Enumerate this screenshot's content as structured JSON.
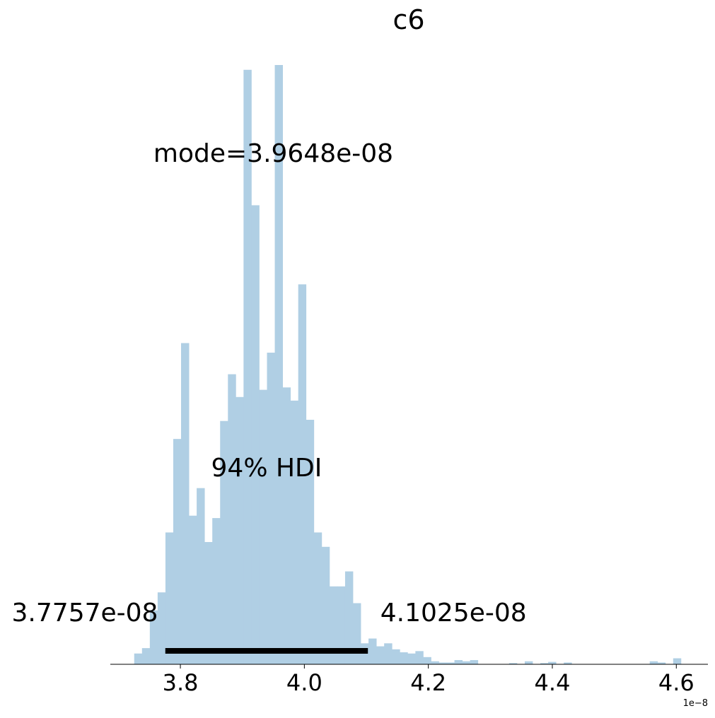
{
  "chart_data": {
    "type": "bar",
    "title": "c6",
    "xlabel": "",
    "ylabel": "",
    "x_offset_label": "1e−8",
    "xlim": [
      3.687,
      4.651
    ],
    "ylim": [
      0,
      1.0
    ],
    "bin_width": 0.0126,
    "colors": {
      "bars": "#b0cfe4",
      "hdi_bar": "#000000",
      "axis": "#000000"
    },
    "bins": {
      "start": [
        3.7255,
        3.7381,
        3.7507,
        3.7633,
        3.7759,
        3.7885,
        3.8011,
        3.8137,
        3.8263,
        3.8389,
        3.8515,
        3.8641,
        3.8767,
        3.8893,
        3.9019,
        3.9145,
        3.9271,
        3.9397,
        3.9523,
        3.9649,
        3.9775,
        3.9901,
        4.0027,
        4.0153,
        4.0279,
        4.0405,
        4.0531,
        4.0657,
        4.0783,
        4.0909,
        4.1035,
        4.1161,
        4.1287,
        4.1413,
        4.1539,
        4.1665,
        4.1791,
        4.1917,
        4.2043,
        4.2169,
        4.2295,
        4.2421,
        4.2547,
        4.2673,
        4.2799,
        4.2925,
        4.3051,
        4.3177,
        4.3303,
        4.3429,
        4.3555,
        4.3681,
        4.3807,
        4.3933,
        4.4059,
        4.4185,
        4.4311,
        4.4437,
        4.4563,
        4.4689,
        4.4815,
        4.4941,
        4.5067,
        4.5193,
        4.5319,
        4.5445,
        4.5571,
        4.5697,
        4.5823,
        4.5949
      ],
      "counts": [
        0.018,
        0.027,
        0.09,
        0.12,
        0.22,
        0.376,
        0.536,
        0.248,
        0.294,
        0.204,
        0.244,
        0.406,
        0.484,
        0.446,
        0.992,
        0.766,
        0.458,
        0.52,
        1.0,
        0.462,
        0.44,
        0.634,
        0.408,
        0.22,
        0.196,
        0.13,
        0.13,
        0.155,
        0.102,
        0.035,
        0.043,
        0.03,
        0.035,
        0.025,
        0.02,
        0.018,
        0.022,
        0.012,
        0.005,
        0.003,
        0.003,
        0.007,
        0.005,
        0.007,
        0.0,
        0.0,
        0.0,
        0.0,
        0.002,
        0.0,
        0.005,
        0.0,
        0.002,
        0.004,
        0.0,
        0.003,
        0.0,
        0.0,
        0.0,
        0.0,
        0.0,
        0.0,
        0.0,
        0.0,
        0.0,
        0.0,
        0.005,
        0.003,
        0.0,
        0.01
      ]
    },
    "xticks": [
      {
        "value": 3.8,
        "label": "3.8"
      },
      {
        "value": 4.0,
        "label": "4.0"
      },
      {
        "value": 4.2,
        "label": "4.2"
      },
      {
        "value": 4.4,
        "label": "4.4"
      },
      {
        "value": 4.6,
        "label": "4.6"
      }
    ],
    "hdi": {
      "label": "94% HDI",
      "low": 3.7757,
      "high": 4.1025,
      "low_label": "3.7757e-08",
      "high_label": "4.1025e-08"
    },
    "mode": {
      "value": 3.9648,
      "label": "mode=3.9648e-08"
    },
    "grid": false,
    "legend": "none"
  }
}
